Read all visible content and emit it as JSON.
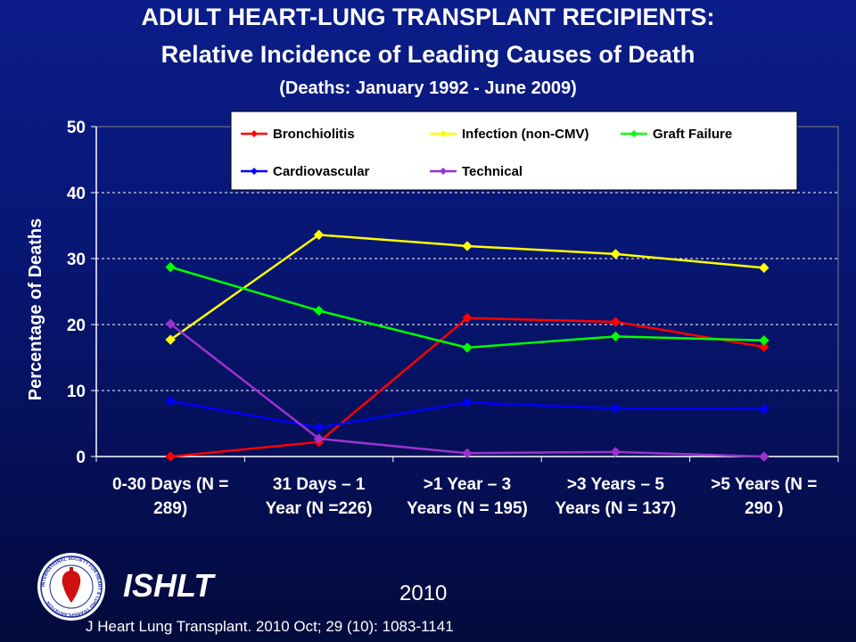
{
  "header": {
    "line1": "ADULT HEART-LUNG TRANSPLANT RECIPIENTS:",
    "line2": "Relative Incidence of Leading Causes of Death",
    "line3": "(Deaths: January 1992 - June 2009)"
  },
  "footer": {
    "org": "ISHLT",
    "year": "2010",
    "citation": "J Heart Lung Transplant. 2010 Oct; 29 (10): 1083-1141",
    "logo_text": "INTERNATIONAL SOCIETY FOR HEART & LUNG TRANSPLANTATION"
  },
  "chart_data": {
    "type": "line",
    "title": "",
    "xlabel": "",
    "ylabel": "Percentage of Deaths",
    "ylim": [
      0,
      50
    ],
    "yticks": [
      0,
      10,
      20,
      30,
      40,
      50
    ],
    "grid": "horizontal dashed",
    "legend_position": "top-right, inside plot",
    "categories": [
      [
        "0-30 Days  (N =",
        "289)"
      ],
      [
        "31 Days –  1",
        "Year  (N =226)"
      ],
      [
        ">1 Year – 3",
        "Years (N = 195)"
      ],
      [
        ">3 Years – 5",
        "Years (N = 137)"
      ],
      [
        ">5 Years  (N =",
        "290 )"
      ]
    ],
    "series": [
      {
        "name": "Bronchiolitis",
        "color": "#ff0000",
        "values": [
          0,
          2.2,
          21,
          20.4,
          16.6
        ]
      },
      {
        "name": "Infection (non-CMV)",
        "color": "#ffff00",
        "values": [
          17.7,
          33.6,
          31.9,
          30.7,
          28.6
        ]
      },
      {
        "name": "Graft Failure",
        "color": "#00ff00",
        "values": [
          28.7,
          22.1,
          16.5,
          18.2,
          17.6
        ]
      },
      {
        "name": "Cardiovascular",
        "color": "#0000ff",
        "values": [
          8.4,
          4.4,
          8.2,
          7.3,
          7.2
        ]
      },
      {
        "name": "Technical",
        "color": "#9933cc",
        "values": [
          20.1,
          2.7,
          0.5,
          0.7,
          0
        ]
      }
    ]
  }
}
